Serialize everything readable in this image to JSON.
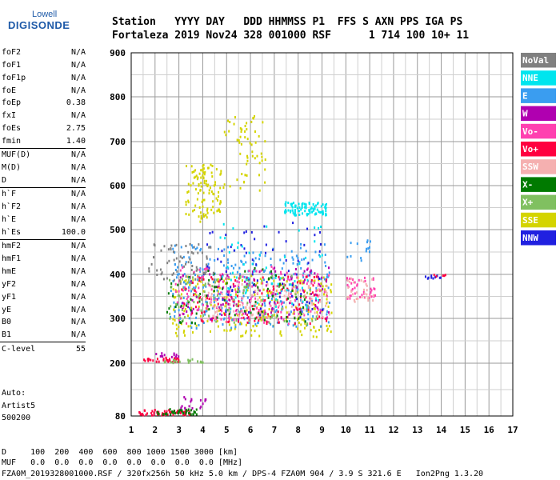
{
  "logo": {
    "line1": "Lowell",
    "line2": "DIGISONDE"
  },
  "header": {
    "row1": "Station   YYYY DAY   DDD HHMMSS P1  FFS S AXN PPS IGA PS",
    "row2": "Fortaleza 2019 Nov24 328 001000 RSF      1 714 100 10+ 11"
  },
  "params": [
    {
      "name": "foF2",
      "value": "N/A"
    },
    {
      "name": "foF1",
      "value": "N/A"
    },
    {
      "name": "foF1p",
      "value": "N/A"
    },
    {
      "name": "foE",
      "value": "N/A"
    },
    {
      "name": "foEp",
      "value": "0.38"
    },
    {
      "name": "fxI",
      "value": "N/A"
    },
    {
      "name": "foEs",
      "value": "2.75"
    },
    {
      "name": "fmin",
      "value": "1.40"
    },
    {
      "name": "MUF(D)",
      "value": "N/A"
    },
    {
      "name": "M(D)",
      "value": "N/A"
    },
    {
      "name": "D",
      "value": "N/A"
    },
    {
      "name": "h`F",
      "value": "N/A"
    },
    {
      "name": "h`F2",
      "value": "N/A"
    },
    {
      "name": "h`E",
      "value": "N/A"
    },
    {
      "name": "h`Es",
      "value": "100.0"
    },
    {
      "name": "hmF2",
      "value": "N/A"
    },
    {
      "name": "hmF1",
      "value": "N/A"
    },
    {
      "name": "hmE",
      "value": "N/A"
    },
    {
      "name": "yF2",
      "value": "N/A"
    },
    {
      "name": "yF1",
      "value": "N/A"
    },
    {
      "name": "yE",
      "value": "N/A"
    },
    {
      "name": "B0",
      "value": "N/A"
    },
    {
      "name": "B1",
      "value": "N/A"
    },
    {
      "name": "C-level",
      "value": "55"
    }
  ],
  "autoscale": {
    "line1": "Auto:",
    "line2": "Artist5",
    "line3": "500200"
  },
  "footer": {
    "d_row": "D     100  200  400  600  800 1000 1500 3000 [km]",
    "muf_row": "MUF   0.0  0.0  0.0  0.0  0.0  0.0  0.0  0.0 [MHz]",
    "info_row": "FZA0M_2019328001000.RSF / 320fx256h 50 kHz 5.0 km / DPS-4 FZA0M 904 / 3.9 S 321.6 E   Ion2Png 1.3.20"
  },
  "chart_data": {
    "type": "scatter",
    "xlim": [
      1,
      17
    ],
    "ylim": [
      80,
      900
    ],
    "x_ticks": [
      1,
      2,
      3,
      4,
      5,
      6,
      7,
      8,
      9,
      10,
      11,
      12,
      13,
      14,
      15,
      16,
      17
    ],
    "y_ticks": [
      80,
      200,
      300,
      400,
      500,
      600,
      700,
      800,
      900
    ],
    "grid": true,
    "legend_position": "right",
    "legend": [
      {
        "name": "NoVal",
        "color": "#808080"
      },
      {
        "name": "NNE",
        "color": "#00e5ee"
      },
      {
        "name": "E",
        "color": "#3a9df0"
      },
      {
        "name": "W",
        "color": "#b000b0"
      },
      {
        "name": "Vo-",
        "color": "#ff40b0"
      },
      {
        "name": "Vo+",
        "color": "#ff0040"
      },
      {
        "name": "SSW",
        "color": "#f5b0b0"
      },
      {
        "name": "X-",
        "color": "#007a00"
      },
      {
        "name": "X+",
        "color": "#80c060"
      },
      {
        "name": "SSE",
        "color": "#d4d400"
      },
      {
        "name": "NNW",
        "color": "#2020e0"
      }
    ],
    "clusters": [
      {
        "color": "#ff0040",
        "xmin": 1.3,
        "xmax": 3.6,
        "ymin": 84,
        "ymax": 96,
        "n": 60
      },
      {
        "color": "#007a00",
        "xmin": 2.0,
        "xmax": 3.8,
        "ymin": 86,
        "ymax": 98,
        "n": 40
      },
      {
        "color": "#b000b0",
        "xmin": 3.0,
        "xmax": 4.3,
        "ymin": 100,
        "ymax": 130,
        "n": 18
      },
      {
        "color": "#ff0040",
        "xmin": 1.4,
        "xmax": 3.0,
        "ymin": 205,
        "ymax": 215,
        "n": 30
      },
      {
        "color": "#80c060",
        "xmin": 2.3,
        "xmax": 4.0,
        "ymin": 203,
        "ymax": 212,
        "n": 20
      },
      {
        "color": "#b000b0",
        "xmin": 2.0,
        "xmax": 3.0,
        "ymin": 215,
        "ymax": 225,
        "n": 12
      },
      {
        "color": "#d4d400",
        "xmin": 2.7,
        "xmax": 9.4,
        "ymin": 260,
        "ymax": 400,
        "n": 260
      },
      {
        "color": "#3a9df0",
        "xmin": 2.6,
        "xmax": 9.3,
        "ymin": 280,
        "ymax": 470,
        "n": 300
      },
      {
        "color": "#ff40b0",
        "xmin": 2.8,
        "xmax": 9.3,
        "ymin": 290,
        "ymax": 420,
        "n": 180
      },
      {
        "color": "#ff0040",
        "xmin": 3.0,
        "xmax": 9.3,
        "ymin": 290,
        "ymax": 400,
        "n": 120
      },
      {
        "color": "#b000b0",
        "xmin": 3.0,
        "xmax": 9.3,
        "ymin": 300,
        "ymax": 420,
        "n": 120
      },
      {
        "color": "#f5b0b0",
        "xmin": 4.0,
        "xmax": 9.3,
        "ymin": 300,
        "ymax": 380,
        "n": 120
      },
      {
        "color": "#007a00",
        "xmin": 2.4,
        "xmax": 8.5,
        "ymin": 290,
        "ymax": 420,
        "n": 80
      },
      {
        "color": "#80c060",
        "xmin": 2.5,
        "xmax": 8.8,
        "ymin": 290,
        "ymax": 400,
        "n": 80
      },
      {
        "color": "#2020e0",
        "xmin": 4.0,
        "xmax": 9.2,
        "ymin": 300,
        "ymax": 520,
        "n": 70
      },
      {
        "color": "#00e5ee",
        "xmin": 7.4,
        "xmax": 9.2,
        "ymin": 535,
        "ymax": 565,
        "n": 90
      },
      {
        "color": "#00e5ee",
        "xmin": 4.5,
        "xmax": 9.0,
        "ymin": 320,
        "ymax": 520,
        "n": 60
      },
      {
        "color": "#d4d400",
        "xmin": 3.2,
        "xmax": 4.8,
        "ymin": 520,
        "ymax": 650,
        "n": 110
      },
      {
        "color": "#d4d400",
        "xmin": 4.8,
        "xmax": 6.6,
        "ymin": 590,
        "ymax": 760,
        "n": 60
      },
      {
        "color": "#808080",
        "xmin": 1.7,
        "xmax": 4.5,
        "ymin": 380,
        "ymax": 470,
        "n": 70
      },
      {
        "color": "#ff40b0",
        "xmin": 10.0,
        "xmax": 11.2,
        "ymin": 345,
        "ymax": 395,
        "n": 40
      },
      {
        "color": "#f5b0b0",
        "xmin": 10.0,
        "xmax": 11.2,
        "ymin": 340,
        "ymax": 400,
        "n": 30
      },
      {
        "color": "#3a9df0",
        "xmin": 10.0,
        "xmax": 11.0,
        "ymin": 420,
        "ymax": 480,
        "n": 14
      },
      {
        "color": "#2020e0",
        "xmin": 13.2,
        "xmax": 14.0,
        "ymin": 393,
        "ymax": 400,
        "n": 10
      },
      {
        "color": "#ff0040",
        "xmin": 13.6,
        "xmax": 14.2,
        "ymin": 395,
        "ymax": 402,
        "n": 5
      }
    ]
  }
}
